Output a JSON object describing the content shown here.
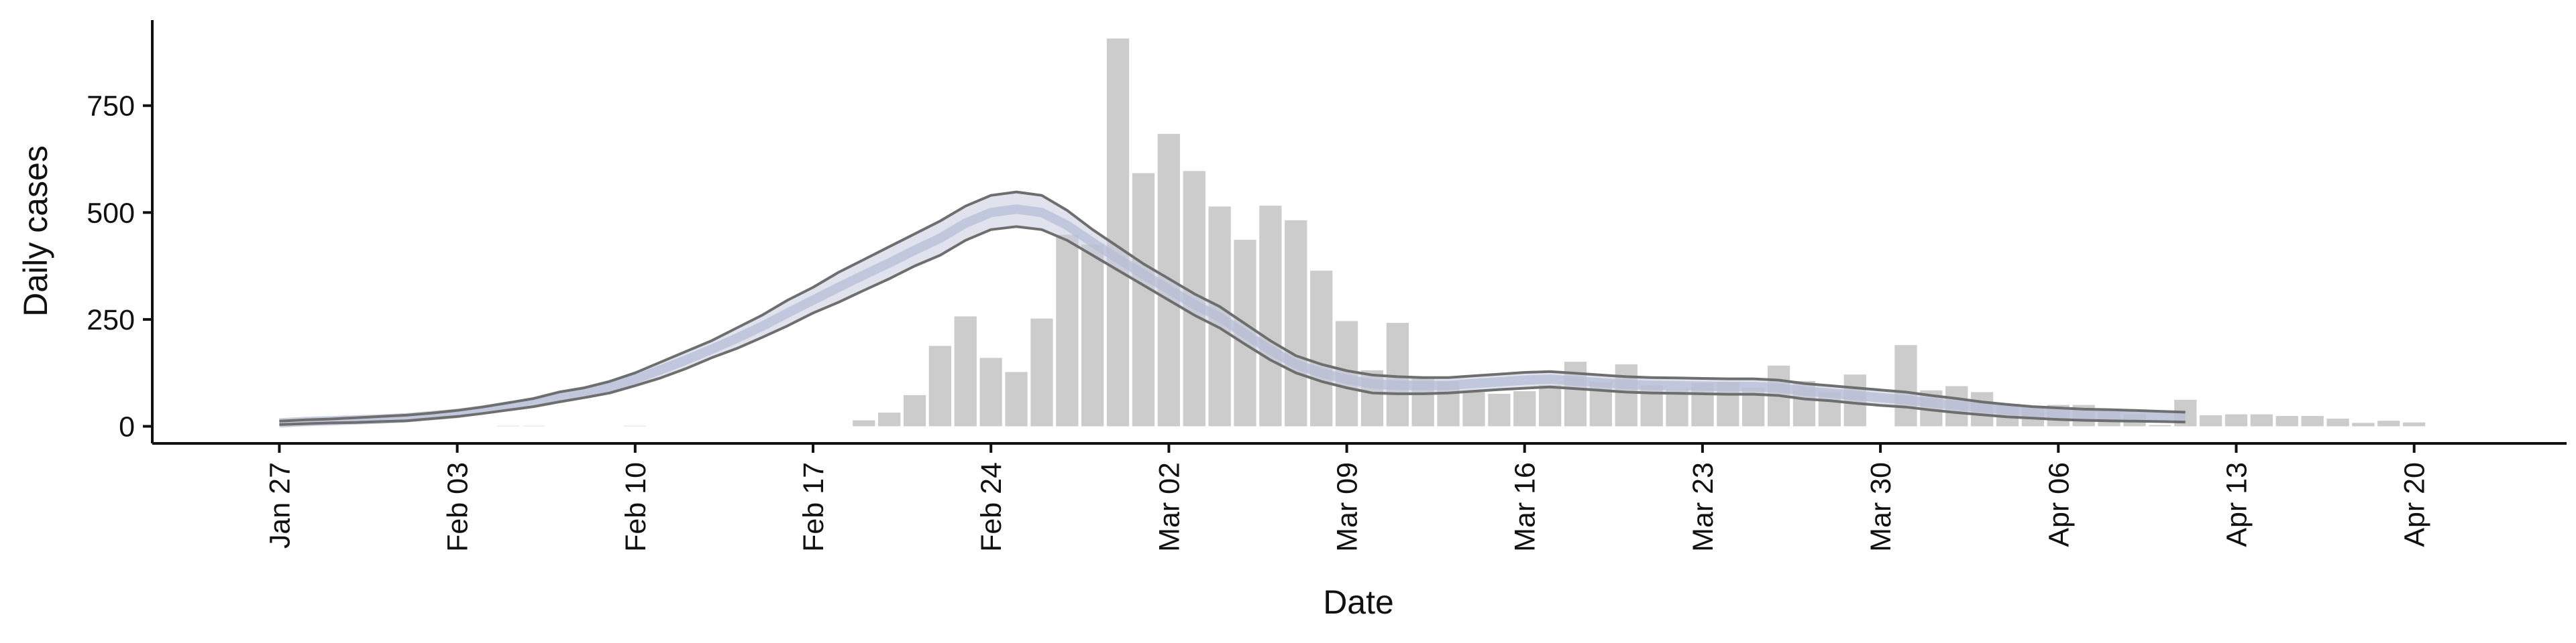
{
  "chart_data": {
    "type": "bar",
    "xlabel": "Date",
    "ylabel": "Daily cases",
    "x_tick_labels": [
      "Jan 27",
      "Feb 03",
      "Feb 10",
      "Feb 17",
      "Feb 24",
      "Mar 02",
      "Mar 09",
      "Mar 16",
      "Mar 23",
      "Mar 30",
      "Apr 06",
      "Apr 13",
      "Apr 20"
    ],
    "y_ticks": [
      0,
      250,
      500,
      750
    ],
    "ylim": [
      -40,
      950
    ],
    "xlim": [
      "2020-01-22",
      "2020-04-26"
    ],
    "legend": "none",
    "grid": false,
    "bar_color": "#cccccc",
    "band_color": "#c6cbdf",
    "line_color": "#6e6e6e",
    "bars": {
      "start_date": "2020-02-05",
      "values": [
        1,
        1,
        0,
        0,
        0,
        1,
        0,
        0,
        0,
        0,
        0,
        0,
        0,
        0,
        14,
        32,
        73,
        188,
        257,
        160,
        127,
        252,
        448,
        425,
        907,
        592,
        684,
        597,
        514,
        436,
        516,
        482,
        364,
        246,
        131,
        242,
        117,
        105,
        80,
        76,
        82,
        96,
        151,
        104,
        145,
        96,
        86,
        101,
        104,
        90,
        142,
        106,
        80,
        121,
        0,
        190,
        84,
        94,
        80,
        52,
        46,
        50,
        50,
        37,
        28,
        3,
        62,
        26,
        28,
        28,
        24,
        24,
        18,
        8,
        13,
        9
      ]
    },
    "model": {
      "start_date": "2020-01-27",
      "upper": [
        12,
        15,
        17,
        20,
        23,
        26,
        31,
        37,
        45,
        55,
        65,
        80,
        90,
        105,
        125,
        150,
        175,
        200,
        230,
        260,
        295,
        325,
        360,
        390,
        420,
        450,
        480,
        515,
        540,
        548,
        540,
        505,
        460,
        420,
        380,
        345,
        310,
        280,
        240,
        200,
        165,
        145,
        130,
        120,
        116,
        114,
        114,
        118,
        122,
        126,
        128,
        124,
        120,
        116,
        114,
        113,
        112,
        111,
        111,
        108,
        100,
        95,
        90,
        85,
        80,
        72,
        65,
        57,
        51,
        46,
        43,
        40,
        39,
        37,
        35,
        33
      ],
      "mid": [
        8,
        11,
        13,
        15,
        17,
        20,
        25,
        30,
        38,
        47,
        56,
        69,
        79,
        92,
        110,
        132,
        155,
        180,
        206,
        234,
        265,
        295,
        325,
        354,
        382,
        412,
        440,
        475,
        500,
        508,
        500,
        470,
        430,
        392,
        355,
        320,
        285,
        255,
        216,
        178,
        145,
        125,
        110,
        99,
        96,
        95,
        96,
        100,
        104,
        108,
        110,
        106,
        102,
        98,
        96,
        95,
        94,
        93,
        93,
        90,
        82,
        78,
        72,
        67,
        62,
        55,
        49,
        43,
        38,
        34,
        31,
        28,
        27,
        26,
        24,
        23
      ],
      "lower": [
        4,
        6,
        8,
        9,
        11,
        13,
        18,
        23,
        30,
        38,
        46,
        57,
        67,
        78,
        95,
        113,
        135,
        160,
        182,
        208,
        235,
        265,
        290,
        318,
        345,
        375,
        400,
        435,
        460,
        467,
        460,
        435,
        400,
        365,
        330,
        295,
        260,
        230,
        192,
        155,
        125,
        105,
        90,
        78,
        76,
        76,
        78,
        82,
        86,
        89,
        92,
        88,
        84,
        80,
        78,
        77,
        76,
        75,
        75,
        72,
        64,
        60,
        54,
        49,
        45,
        38,
        32,
        27,
        22,
        19,
        16,
        14,
        13,
        12,
        11,
        10
      ]
    }
  }
}
